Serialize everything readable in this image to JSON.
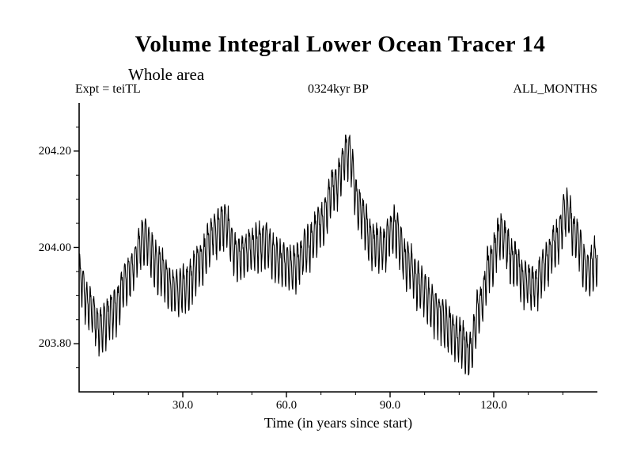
{
  "page": {
    "background": "#ffffff",
    "foreground": "#000000"
  },
  "chart_data": {
    "type": "line",
    "title": "Volume Integral Lower Ocean Tracer 14",
    "subtitle": "Whole area",
    "annotations": {
      "left": "Expt = teiTL",
      "center": "0324kyr BP",
      "right": "ALL_MONTHS"
    },
    "xlabel": "Time (in years since start)",
    "ylabel": "",
    "xlim": [
      0,
      150
    ],
    "ylim": [
      203.7,
      204.3
    ],
    "xtick_values": [
      30,
      60,
      90,
      120
    ],
    "xtick_labels": [
      "30.0",
      "60.0",
      "90.0",
      "120.0"
    ],
    "xtick_minor_step": 10,
    "ytick_values": [
      203.8,
      204.0,
      204.2
    ],
    "ytick_labels": [
      "203.80",
      "204.00",
      "204.20"
    ],
    "ytick_minor_step": 0.05,
    "grid": false,
    "legend": "none",
    "line_color": "#000000",
    "series": [
      {
        "name": "Volume integral lower ocean tracer 14",
        "sampling": "monthly",
        "samples_per_year": 12,
        "seasonal_amplitude": 0.042,
        "second_harmonic": 0.012,
        "noise_amplitude": 0.012,
        "trend": {
          "x": [
            0,
            3,
            6,
            10,
            14,
            19,
            23,
            27,
            31,
            35,
            39,
            42,
            46,
            50,
            54,
            58,
            62,
            66,
            70,
            74,
            78,
            81,
            85,
            88,
            91,
            95,
            99,
            103,
            107,
            110,
            113,
            116,
            119,
            122,
            126,
            129,
            132,
            135,
            138,
            141,
            144,
            147,
            150
          ],
          "y": [
            203.94,
            203.88,
            203.83,
            203.87,
            203.94,
            204.02,
            203.96,
            203.91,
            203.92,
            203.97,
            204.03,
            204.05,
            203.98,
            204.0,
            204.01,
            203.97,
            203.96,
            204.0,
            204.05,
            204.13,
            204.2,
            204.08,
            204.01,
            204.0,
            204.04,
            203.97,
            203.92,
            203.87,
            203.84,
            203.81,
            203.78,
            203.88,
            203.97,
            204.03,
            203.97,
            203.93,
            203.92,
            203.97,
            204.01,
            204.08,
            204.02,
            203.95,
            203.98
          ]
        }
      }
    ]
  }
}
